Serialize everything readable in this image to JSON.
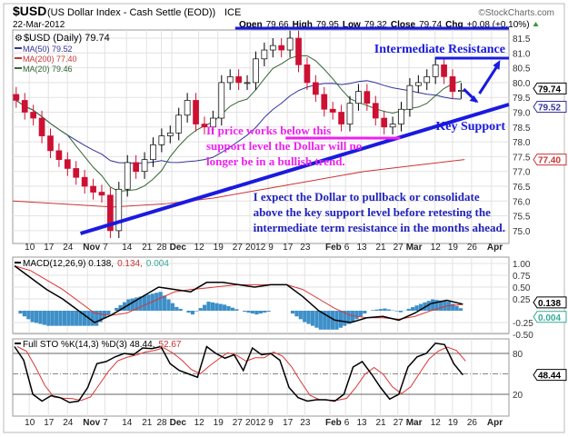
{
  "header": {
    "symbol": "$USD",
    "name": "(US Dollar Index - Cash Settle (EOD))",
    "exchange": "ICE",
    "date": "22-Mar-2012",
    "brand": "©StockCharts.com",
    "open_label": "Open",
    "open": "79.66",
    "high_label": "High",
    "high": "79.95",
    "low_label": "Low",
    "low": "79.32",
    "close_label": "Close",
    "close": "79.74",
    "chg_label": "Chg",
    "chg": "+0.08 (+0.10%)"
  },
  "legend": {
    "price": "$USD (Daily) 79.74",
    "ma50": "MA(50) 79.52",
    "ma200": "MA(200) 77.40",
    "ma20": "MA(20) 79.46",
    "macd": "MACD(12,26,9) 0.138,",
    "macd_signal": "0.134,",
    "macd_hist": "0.004",
    "sto": "Full STO %K(14,3) %D(3) 48.44,",
    "sto_d": "52.67"
  },
  "badges": {
    "close": "79.74",
    "ma50": "79.52",
    "ma200": "77.40",
    "macd": "0.138",
    "macd_hist": "0.004",
    "sto": "48.44"
  },
  "annotations": {
    "resistance": "Intermediate Resistance",
    "support": "Key Support",
    "warning": [
      "If price works below this",
      "support level the Dollar will no",
      "longer be in a bullish trend."
    ],
    "outlook": [
      "I expect the Dollar to pullback or consolidate",
      "above the key support level before retesting the",
      "intermediate term resistance in the months ahead."
    ]
  },
  "colors": {
    "up": "#ffffff",
    "down": "#cc1133",
    "ma50": "#333399",
    "ma200": "#cc3333",
    "ma20": "#336633",
    "trend": "#1a1adf",
    "magenta": "#ee22ee",
    "hist": "#3d8fc8"
  },
  "chart_data": [
    {
      "type": "candlestick",
      "title": "$USD (Daily)",
      "ylim": [
        74.7,
        82.0
      ],
      "yticks": [
        75.0,
        75.5,
        76.0,
        76.5,
        77.0,
        77.5,
        78.0,
        78.5,
        79.0,
        79.5,
        80.0,
        80.5,
        81.0,
        81.5
      ],
      "xticks": [
        "10",
        "17",
        "24",
        "Nov",
        "7",
        "14",
        "21",
        "28",
        "Dec",
        "12",
        "19",
        "27",
        "2012",
        "9",
        "17",
        "23",
        "Feb",
        "6",
        "13",
        "21",
        "27",
        "Mar",
        "12",
        "19",
        "26",
        "Apr"
      ],
      "closes": [
        79.4,
        79.0,
        78.8,
        78.2,
        77.7,
        77.4,
        77.1,
        76.8,
        76.5,
        76.3,
        76.2,
        75.0,
        76.4,
        77.3,
        77.0,
        77.4,
        77.9,
        78.2,
        78.3,
        78.9,
        79.4,
        78.6,
        78.5,
        78.8,
        80.0,
        80.2,
        80.0,
        80.0,
        80.8,
        81.1,
        81.25,
        81.1,
        81.5,
        80.6,
        80.0,
        79.6,
        79.1,
        79.0,
        78.6,
        79.3,
        79.7,
        79.3,
        78.8,
        78.5,
        78.6,
        79.1,
        79.9,
        80.0,
        80.2,
        80.6,
        80.2,
        79.7,
        79.74
      ],
      "ma200": [
        76.0,
        75.9,
        75.8,
        75.9,
        76.1,
        76.4,
        76.7,
        77.0,
        77.2,
        77.4
      ]
    },
    {
      "type": "line",
      "title": "MACD(12,26,9)",
      "ylim": [
        -0.6,
        1.1
      ],
      "yticks": [
        -0.5,
        -0.25,
        0.25,
        0.5,
        0.75,
        1.0
      ],
      "macd": [
        0.95,
        0.7,
        0.45,
        0.25,
        0.0,
        -0.25,
        -0.1,
        0.1,
        0.3,
        0.5,
        0.45,
        0.4,
        0.6,
        0.6,
        0.55,
        0.5,
        0.55,
        0.55,
        0.3,
        0.0,
        -0.2,
        -0.25,
        -0.15,
        -0.12,
        -0.2,
        -0.05,
        0.15,
        0.22,
        0.138
      ],
      "signal": [
        0.95,
        0.85,
        0.65,
        0.45,
        0.2,
        -0.05,
        -0.1,
        -0.05,
        0.1,
        0.25,
        0.4,
        0.45,
        0.48,
        0.52,
        0.55,
        0.55,
        0.55,
        0.55,
        0.45,
        0.25,
        0.05,
        -0.1,
        -0.15,
        -0.15,
        -0.18,
        -0.12,
        0.0,
        0.1,
        0.134
      ]
    },
    {
      "type": "line",
      "title": "Full STO %K(14,3) %D(3)",
      "ylim": [
        -5,
        110
      ],
      "yticks": [
        20,
        80
      ],
      "reference": 50,
      "k": [
        90,
        70,
        20,
        10,
        18,
        15,
        8,
        10,
        30,
        65,
        68,
        75,
        80,
        78,
        88,
        87,
        90,
        65,
        55,
        50,
        45,
        90,
        80,
        73,
        78,
        55,
        88,
        78,
        80,
        70,
        30,
        15,
        10,
        12,
        12,
        10,
        20,
        60,
        68,
        50,
        30,
        13,
        20,
        60,
        75,
        80,
        95,
        93,
        65,
        48.44
      ]
    }
  ]
}
